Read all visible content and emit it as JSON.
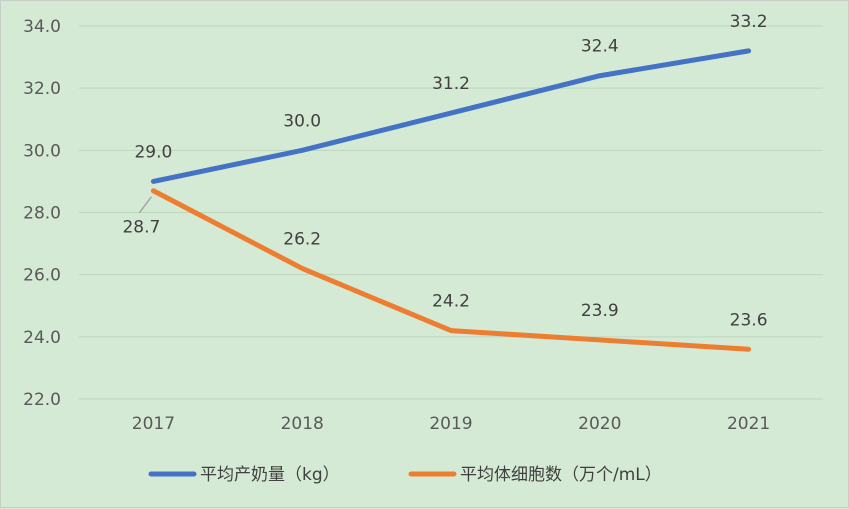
{
  "chart_data": {
    "type": "line",
    "title": "",
    "xlabel": "",
    "ylabel": "",
    "categories": [
      "2017",
      "2018",
      "2019",
      "2020",
      "2021"
    ],
    "ylim": [
      22.0,
      34.0
    ],
    "yticks": [
      "22.0",
      "24.0",
      "26.0",
      "28.0",
      "30.0",
      "32.0",
      "34.0"
    ],
    "grid": true,
    "legend_position": "bottom",
    "series": [
      {
        "name": "平均产奶量（kg）",
        "color": "#4472c4",
        "values": [
          29.0,
          30.0,
          31.2,
          32.4,
          33.2
        ],
        "labels": [
          "29.0",
          "30.0",
          "31.2",
          "32.4",
          "33.2"
        ]
      },
      {
        "name": "平均体细胞数（万个/mL）",
        "color": "#ed7d31",
        "values": [
          28.7,
          26.2,
          24.2,
          23.9,
          23.6
        ],
        "labels": [
          "28.7",
          "26.2",
          "24.2",
          "23.9",
          "23.6"
        ]
      }
    ]
  }
}
